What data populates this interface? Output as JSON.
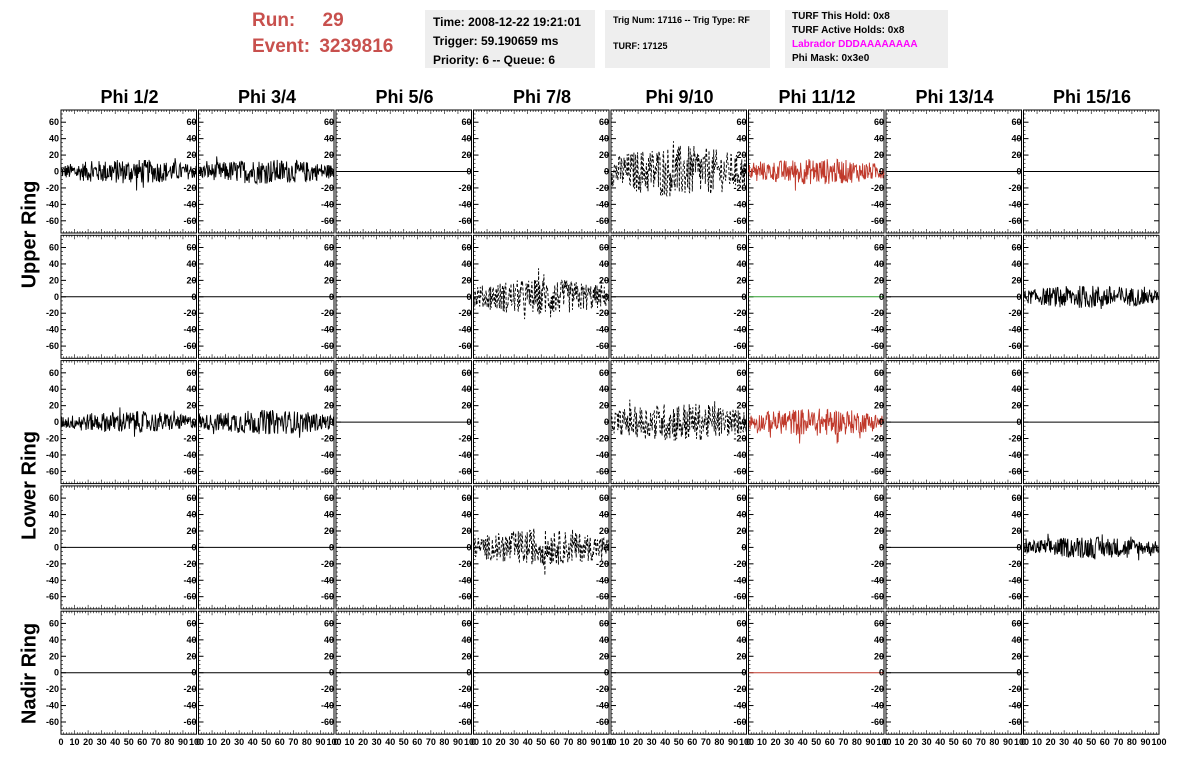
{
  "header": {
    "run_label": "Run:",
    "run_value": "29",
    "event_label": "Event:",
    "event_value": "3239816",
    "time": "Time: 2008-12-22 19:21:01",
    "trigger": "Trigger: 59.190659 ms",
    "priority": "Priority: 6 -- Queue: 6",
    "trig_num": "Trig Num: 17116 -- Trig Type: RF",
    "turf": "TURF: 17125",
    "turf_this_hold": "TURF This Hold: 0x8",
    "turf_active_holds": "TURF Active Holds: 0x8",
    "labrador": "Labrador DDDAAAAAAAA",
    "phi_mask": "Phi Mask: 0x3e0"
  },
  "columns": [
    "Phi 1/2",
    "Phi 3/4",
    "Phi 5/6",
    "Phi 7/8",
    "Phi 9/10",
    "Phi 11/12",
    "Phi 13/14",
    "Phi 15/16"
  ],
  "rings": [
    {
      "name": "Upper Ring",
      "rows": [
        0,
        1
      ]
    },
    {
      "name": "Lower Ring",
      "rows": [
        2,
        3
      ]
    },
    {
      "name": "Nadir Ring",
      "rows": [
        4
      ]
    }
  ],
  "colors": {
    "trace": "#000000",
    "red_trace": "#c0392b",
    "green_trace": "#2e9e2e",
    "run_text": "#c8504d",
    "labrador": "#ff00ff"
  },
  "chart_data": {
    "type": "line",
    "title": "",
    "xlabel": "",
    "ylabel": "",
    "xlim": [
      0,
      100
    ],
    "ylim": [
      -70,
      70
    ],
    "x_ticks": [
      0,
      10,
      20,
      30,
      40,
      50,
      60,
      70,
      80,
      90,
      100
    ],
    "x_tick_labels": [
      "0",
      "10",
      "20",
      "30",
      "40",
      "50",
      "60",
      "70",
      "80",
      "90",
      "100"
    ],
    "y_ticks": [
      -60,
      -40,
      -20,
      0,
      20,
      40,
      60
    ],
    "y_tick_labels": [
      "-60",
      "-40",
      "-20",
      "0",
      "20",
      "40",
      "60"
    ],
    "grid": false,
    "panels": [
      {
        "row": 0,
        "col": 0,
        "style": "solid",
        "color": "#000000",
        "amplitude": 15,
        "x_range": [
          0,
          100
        ]
      },
      {
        "row": 0,
        "col": 1,
        "style": "solid",
        "color": "#000000",
        "amplitude": 15,
        "x_range": [
          0,
          100
        ]
      },
      {
        "row": 0,
        "col": 2,
        "style": "flat",
        "color": "#000000",
        "amplitude": 0,
        "x_range": [
          0,
          100
        ]
      },
      {
        "row": 0,
        "col": 3,
        "style": "none",
        "color": "#000000",
        "amplitude": 0,
        "x_range": [
          0,
          100
        ]
      },
      {
        "row": 0,
        "col": 4,
        "style": "dashed",
        "color": "#000000",
        "amplitude": 32,
        "x_range": [
          0,
          100
        ]
      },
      {
        "row": 0,
        "col": 5,
        "style": "solid",
        "color": "#c0392b",
        "amplitude": 16,
        "x_range": [
          0,
          100
        ]
      },
      {
        "row": 0,
        "col": 6,
        "style": "flat",
        "color": "#000000",
        "amplitude": 0,
        "x_range": [
          0,
          100
        ]
      },
      {
        "row": 0,
        "col": 7,
        "style": "flat",
        "color": "#000000",
        "amplitude": 0,
        "x_range": [
          0,
          100
        ]
      },
      {
        "row": 1,
        "col": 0,
        "style": "flat",
        "color": "#000000",
        "amplitude": 0,
        "x_range": [
          0,
          100
        ]
      },
      {
        "row": 1,
        "col": 1,
        "style": "flat",
        "color": "#000000",
        "amplitude": 0,
        "x_range": [
          0,
          100
        ]
      },
      {
        "row": 1,
        "col": 2,
        "style": "flat",
        "color": "#000000",
        "amplitude": 0,
        "x_range": [
          0,
          100
        ]
      },
      {
        "row": 1,
        "col": 3,
        "style": "dashed",
        "color": "#000000",
        "amplitude": 22,
        "x_range": [
          0,
          100
        ]
      },
      {
        "row": 1,
        "col": 4,
        "style": "flat",
        "color": "#000000",
        "amplitude": 0,
        "x_range": [
          0,
          100
        ]
      },
      {
        "row": 1,
        "col": 5,
        "style": "flat",
        "color": "#2e9e2e",
        "amplitude": 0,
        "x_range": [
          0,
          100
        ]
      },
      {
        "row": 1,
        "col": 6,
        "style": "flat",
        "color": "#000000",
        "amplitude": 0,
        "x_range": [
          0,
          100
        ]
      },
      {
        "row": 1,
        "col": 7,
        "style": "solid",
        "color": "#000000",
        "amplitude": 14,
        "x_range": [
          0,
          100
        ]
      },
      {
        "row": 2,
        "col": 0,
        "style": "solid",
        "color": "#000000",
        "amplitude": 13,
        "x_range": [
          0,
          100
        ]
      },
      {
        "row": 2,
        "col": 1,
        "style": "solid",
        "color": "#000000",
        "amplitude": 15,
        "x_range": [
          0,
          100
        ]
      },
      {
        "row": 2,
        "col": 2,
        "style": "flat",
        "color": "#000000",
        "amplitude": 0,
        "x_range": [
          0,
          100
        ]
      },
      {
        "row": 2,
        "col": 3,
        "style": "none",
        "color": "#000000",
        "amplitude": 0,
        "x_range": [
          0,
          100
        ]
      },
      {
        "row": 2,
        "col": 4,
        "style": "dashed",
        "color": "#000000",
        "amplitude": 24,
        "x_range": [
          0,
          100
        ]
      },
      {
        "row": 2,
        "col": 5,
        "style": "solid",
        "color": "#c0392b",
        "amplitude": 17,
        "x_range": [
          0,
          100
        ]
      },
      {
        "row": 2,
        "col": 6,
        "style": "flat",
        "color": "#000000",
        "amplitude": 0,
        "x_range": [
          0,
          100
        ]
      },
      {
        "row": 2,
        "col": 7,
        "style": "flat",
        "color": "#000000",
        "amplitude": 0,
        "x_range": [
          0,
          100
        ]
      },
      {
        "row": 3,
        "col": 0,
        "style": "flat",
        "color": "#000000",
        "amplitude": 0,
        "x_range": [
          0,
          100
        ]
      },
      {
        "row": 3,
        "col": 1,
        "style": "flat",
        "color": "#000000",
        "amplitude": 0,
        "x_range": [
          0,
          100
        ]
      },
      {
        "row": 3,
        "col": 2,
        "style": "flat",
        "color": "#000000",
        "amplitude": 0,
        "x_range": [
          0,
          100
        ]
      },
      {
        "row": 3,
        "col": 3,
        "style": "dashed",
        "color": "#000000",
        "amplitude": 22,
        "x_range": [
          0,
          100
        ]
      },
      {
        "row": 3,
        "col": 4,
        "style": "none",
        "color": "#000000",
        "amplitude": 0,
        "x_range": [
          0,
          100
        ]
      },
      {
        "row": 3,
        "col": 5,
        "style": "none",
        "color": "#000000",
        "amplitude": 0,
        "x_range": [
          0,
          100
        ]
      },
      {
        "row": 3,
        "col": 6,
        "style": "flat",
        "color": "#000000",
        "amplitude": 0,
        "x_range": [
          0,
          100
        ]
      },
      {
        "row": 3,
        "col": 7,
        "style": "solid",
        "color": "#000000",
        "amplitude": 13,
        "x_range": [
          0,
          100
        ]
      },
      {
        "row": 4,
        "col": 0,
        "style": "flat",
        "color": "#000000",
        "amplitude": 0,
        "x_range": [
          0,
          100
        ]
      },
      {
        "row": 4,
        "col": 1,
        "style": "flat",
        "color": "#000000",
        "amplitude": 0,
        "x_range": [
          0,
          100
        ]
      },
      {
        "row": 4,
        "col": 2,
        "style": "flat",
        "color": "#000000",
        "amplitude": 0,
        "x_range": [
          0,
          100
        ]
      },
      {
        "row": 4,
        "col": 3,
        "style": "flat",
        "color": "#000000",
        "amplitude": 0,
        "x_range": [
          0,
          100
        ]
      },
      {
        "row": 4,
        "col": 4,
        "style": "flat",
        "color": "#000000",
        "amplitude": 0,
        "x_range": [
          0,
          100
        ]
      },
      {
        "row": 4,
        "col": 5,
        "style": "flat",
        "color": "#c0392b",
        "amplitude": 0,
        "x_range": [
          0,
          100
        ]
      },
      {
        "row": 4,
        "col": 6,
        "style": "flat",
        "color": "#000000",
        "amplitude": 0,
        "x_range": [
          0,
          100
        ]
      },
      {
        "row": 4,
        "col": 7,
        "style": "none",
        "color": "#000000",
        "amplitude": 0,
        "x_range": [
          0,
          100
        ]
      }
    ]
  }
}
